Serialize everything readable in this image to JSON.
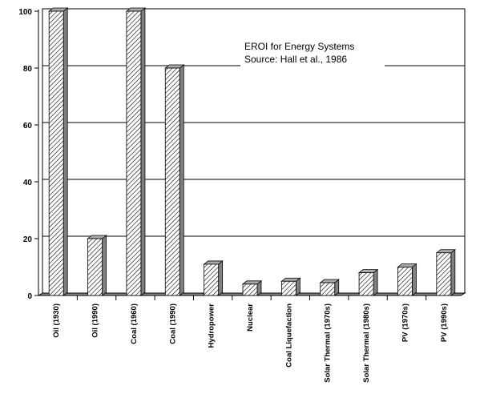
{
  "chart_data": {
    "type": "bar",
    "title": "",
    "annotation": [
      "EROI for Energy Systems",
      "Source: Hall et al., 1986"
    ],
    "xlabel": "",
    "ylabel": "",
    "ylim": [
      0,
      100
    ],
    "yticks": [
      0,
      20,
      40,
      60,
      80,
      100
    ],
    "grid": true,
    "bar_style": "3d-hatched",
    "categories": [
      "Oil (1930)",
      "Oil (1990)",
      "Coal (1960)",
      "Coal (1990)",
      "Hydropower",
      "Nuclear",
      "Coal Liquefaction",
      "Solar Thermal (1970s)",
      "Solar Thermal (1980s)",
      "PV (1970s)",
      "PV (1990s)"
    ],
    "values": [
      100,
      20,
      100,
      80,
      11,
      4,
      5,
      4.5,
      8,
      10,
      15
    ]
  }
}
